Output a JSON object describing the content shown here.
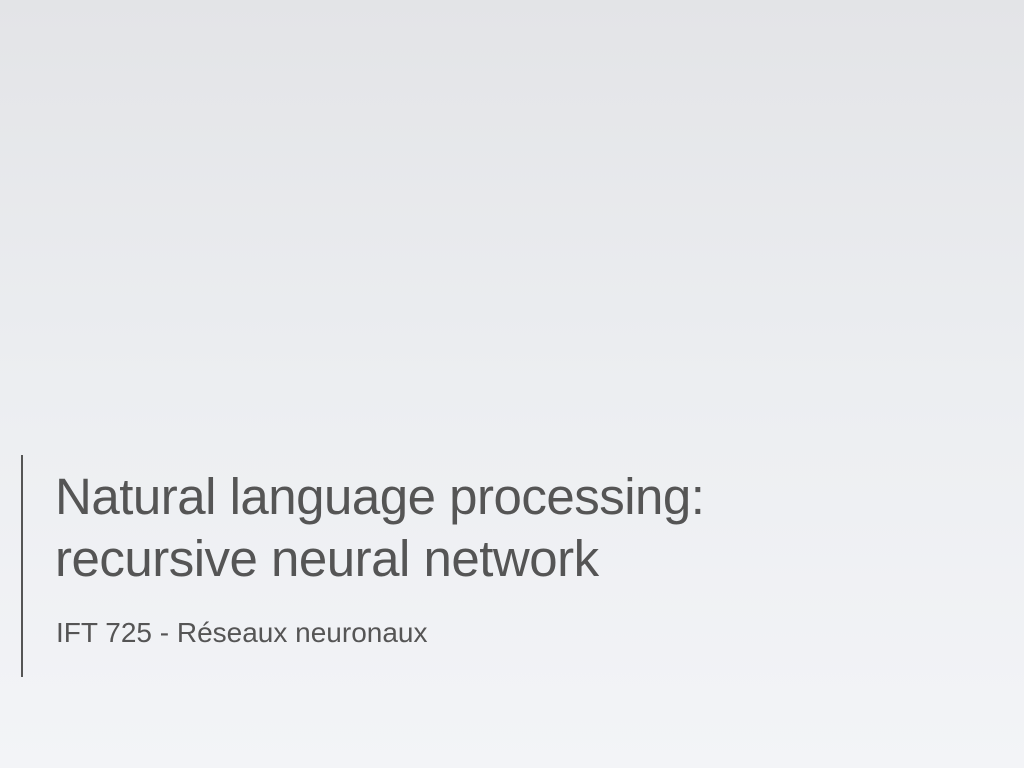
{
  "slide": {
    "title_lines": [
      "Natural language processing:",
      "recursive neural network"
    ],
    "subtitle": "IFT 725 - Réseaux neuronaux"
  },
  "colors": {
    "text": "#555555",
    "accent_bar": "#555555",
    "background_top": "#e3e4e7",
    "background_bottom": "#f3f4f7"
  }
}
